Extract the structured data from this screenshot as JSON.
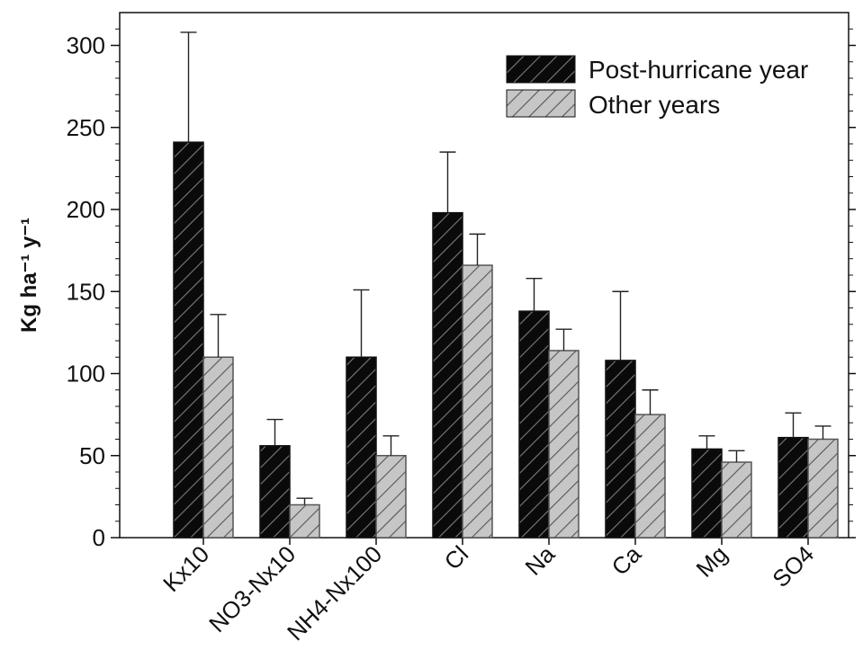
{
  "chart_data": {
    "type": "bar",
    "categories": [
      "Kx10",
      "NO3-Nx10",
      "NH4-Nx100",
      "Cl",
      "Na",
      "Ca",
      "Mg",
      "SO4"
    ],
    "series": [
      {
        "name": "Post-hurricane year",
        "color": "#0a0a0a",
        "values": [
          241,
          56,
          110,
          198,
          138,
          108,
          54,
          61
        ],
        "error_upper": [
          308,
          72,
          151,
          235,
          158,
          150,
          62,
          76
        ]
      },
      {
        "name": "Other years",
        "color": "#c6c6c6",
        "values": [
          110,
          20,
          50,
          166,
          114,
          75,
          46,
          60
        ],
        "error_upper": [
          136,
          24,
          62,
          185,
          127,
          90,
          53,
          68
        ]
      }
    ],
    "title": "",
    "xlabel": "",
    "ylabel": "Kg ha⁻¹ y⁻¹",
    "ylim": [
      0,
      320
    ],
    "yticks": [
      "0",
      "50",
      "100",
      "150",
      "200",
      "250",
      "300"
    ],
    "legend_position": "top-right",
    "grid": false,
    "hatch": "diagonal"
  }
}
